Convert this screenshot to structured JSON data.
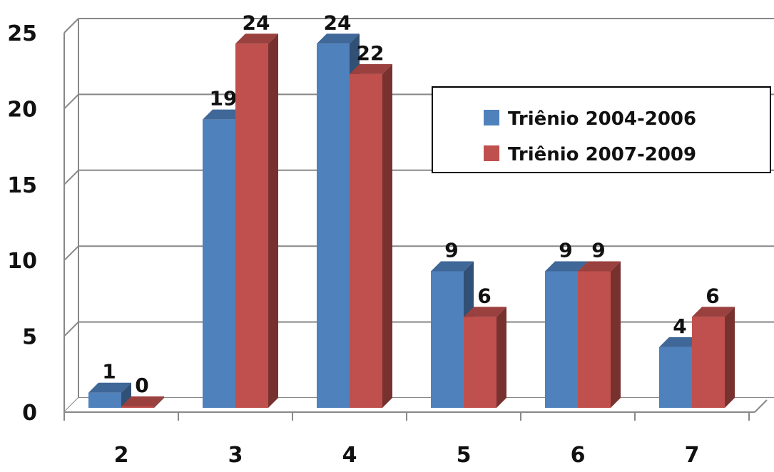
{
  "chart_data": {
    "type": "bar",
    "categories": [
      "2",
      "3",
      "4",
      "5",
      "6",
      "7"
    ],
    "series": [
      {
        "name": "Triênio 2004-2006",
        "values": [
          1,
          19,
          24,
          9,
          9,
          4
        ],
        "color": "#4F81BD"
      },
      {
        "name": "Triênio 2007-2009",
        "values": [
          0,
          24,
          22,
          6,
          9,
          6
        ],
        "color": "#C0504D"
      }
    ],
    "title": "",
    "xlabel": "",
    "ylabel": "",
    "ylim": [
      0,
      25
    ],
    "yticks": [
      "0",
      "5",
      "10",
      "15",
      "20",
      "25"
    ],
    "grid": true,
    "style": "3d-clustered-column",
    "legend_position": "right"
  }
}
